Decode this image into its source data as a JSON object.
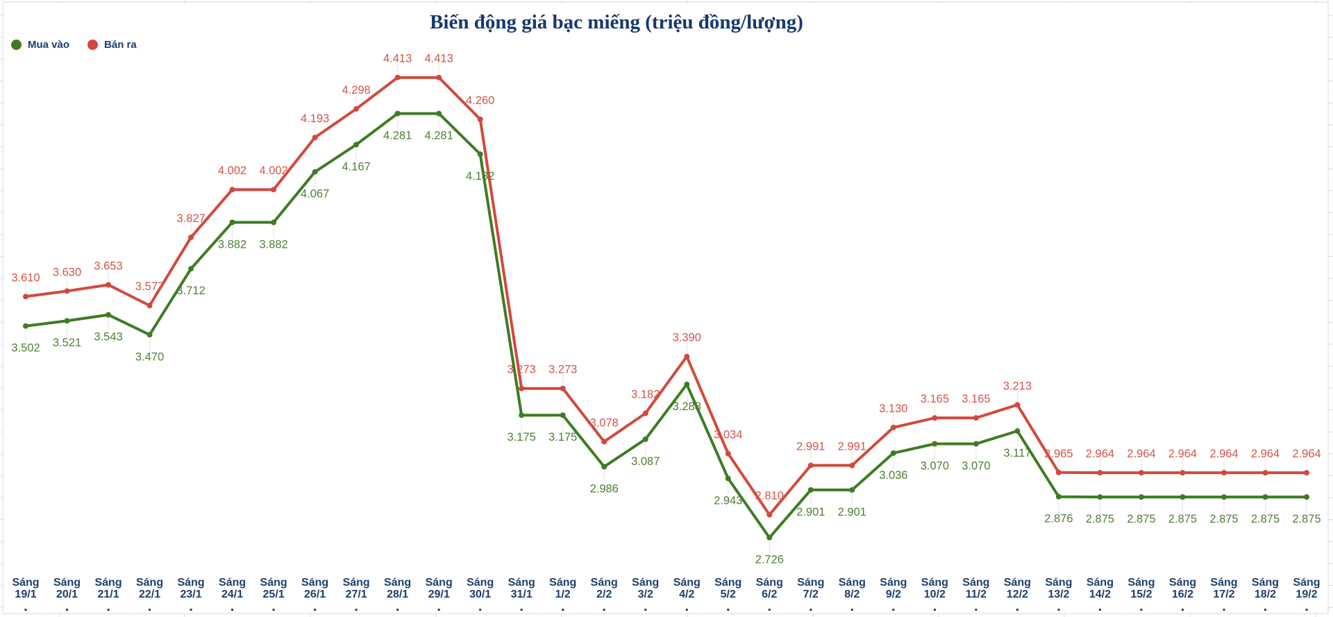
{
  "chart_data": {
    "type": "line",
    "title": "Biến động giá bạc miếng (triệu đồng/lượng)",
    "title_color": "#16386d",
    "axis_label_color": "#1d3e6d",
    "x_prefix": "Sáng",
    "categories": [
      "19/1",
      "20/1",
      "21/1",
      "22/1",
      "23/1",
      "24/1",
      "25/1",
      "26/1",
      "27/1",
      "28/1",
      "29/1",
      "30/1",
      "31/1",
      "1/2",
      "2/2",
      "3/2",
      "4/2",
      "5/2",
      "6/2",
      "7/2",
      "8/2",
      "9/2",
      "10/2",
      "11/2",
      "12/2",
      "13/2",
      "14/2",
      "15/2",
      "16/2",
      "17/2",
      "18/2",
      "19/2"
    ],
    "series": [
      {
        "name": "Mua vào",
        "color": "#3e7c22",
        "label_color": "#4c7f33",
        "values": [
          3.502,
          3.521,
          3.543,
          3.47,
          3.712,
          3.882,
          3.882,
          4.067,
          4.167,
          4.281,
          4.281,
          4.132,
          3.175,
          3.175,
          2.986,
          3.087,
          3.288,
          2.943,
          2.726,
          2.901,
          2.901,
          3.036,
          3.07,
          3.07,
          3.117,
          2.876,
          2.875,
          2.875,
          2.875,
          2.875,
          2.875,
          2.875
        ]
      },
      {
        "name": "Bán ra",
        "color": "#d2493c",
        "label_color": "#d35447",
        "values": [
          3.61,
          3.63,
          3.653,
          3.577,
          3.827,
          4.002,
          4.002,
          4.193,
          4.298,
          4.413,
          4.413,
          4.26,
          3.273,
          3.273,
          3.078,
          3.182,
          3.39,
          3.034,
          2.81,
          2.991,
          2.991,
          3.13,
          3.165,
          3.165,
          3.213,
          2.965,
          2.964,
          2.964,
          2.964,
          2.964,
          2.964,
          2.964
        ]
      }
    ],
    "value_labels": "on",
    "value_label_decimals": 3,
    "grid": "off",
    "legend_position": "top-left",
    "xlabel": "",
    "ylabel": "",
    "ylim": [
      2.6,
      4.55
    ],
    "unit": "triệu đồng/lượng"
  }
}
